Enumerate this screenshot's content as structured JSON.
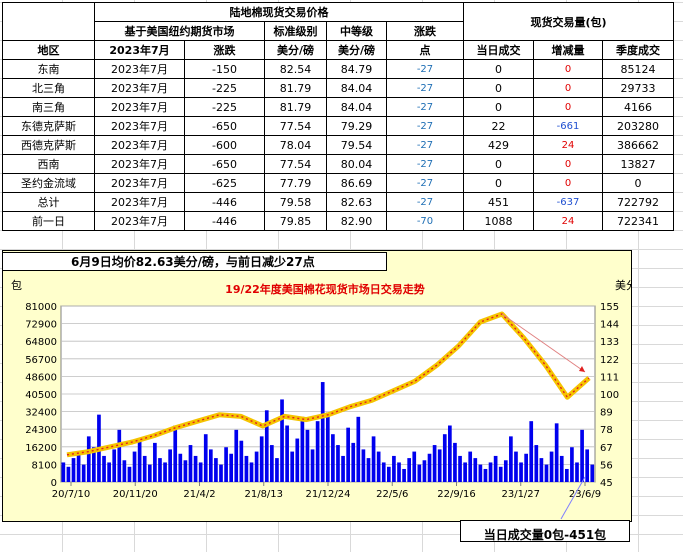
{
  "table": {
    "title": "陆地棉现货交易价格",
    "vol_title": "现货交易量(包)",
    "subheads": {
      "futures": "基于美国纽约期货市场",
      "standard": "标准级别",
      "middle": "中等级",
      "change": "涨跌"
    },
    "headers": [
      "地区",
      "2023年7月",
      "涨跌",
      "美分/磅",
      "美分/磅",
      "点",
      "当日成交",
      "增减量",
      "季度成交"
    ],
    "rows": [
      {
        "region": "东南",
        "month": "2023年7月",
        "chg": "-150",
        "std": "82.54",
        "mid": "84.79",
        "pts": "-27",
        "vol": "0",
        "delta": "0",
        "season": "85124"
      },
      {
        "region": "北三角",
        "month": "2023年7月",
        "chg": "-225",
        "std": "81.79",
        "mid": "84.04",
        "pts": "-27",
        "vol": "0",
        "delta": "0",
        "season": "29733"
      },
      {
        "region": "南三角",
        "month": "2023年7月",
        "chg": "-225",
        "std": "81.79",
        "mid": "84.04",
        "pts": "-27",
        "vol": "0",
        "delta": "0",
        "season": "4166"
      },
      {
        "region": "东德克萨斯",
        "month": "2023年7月",
        "chg": "-650",
        "std": "77.54",
        "mid": "79.29",
        "pts": "-27",
        "vol": "22",
        "delta": "-661",
        "season": "203280"
      },
      {
        "region": "西德克萨斯",
        "month": "2023年7月",
        "chg": "-600",
        "std": "78.04",
        "mid": "79.54",
        "pts": "-27",
        "vol": "429",
        "delta": "24",
        "season": "386662"
      },
      {
        "region": "西南",
        "month": "2023年7月",
        "chg": "-650",
        "std": "77.54",
        "mid": "80.04",
        "pts": "-27",
        "vol": "0",
        "delta": "0",
        "season": "13827"
      },
      {
        "region": "圣约金流域",
        "month": "2023年7月",
        "chg": "-625",
        "std": "77.79",
        "mid": "86.69",
        "pts": "-27",
        "vol": "0",
        "delta": "0",
        "season": "0"
      },
      {
        "region": "总计",
        "month": "2023年7月",
        "chg": "-446",
        "std": "79.58",
        "mid": "82.63",
        "pts": "-27",
        "vol": "451",
        "delta": "-637",
        "season": "722792"
      },
      {
        "region": "前一日",
        "month": "2023年7月",
        "chg": "-446",
        "std": "79.85",
        "mid": "82.90",
        "pts": "-70",
        "vol": "1088",
        "delta": "24",
        "season": "722341"
      }
    ]
  },
  "note": "6月9日均价82.63美分/磅，与前日减少27点",
  "bottom_note": "当日成交量0包-451包",
  "colors": {
    "chart_bg": "#ffffcc",
    "bar": "#0000ee",
    "price_line": "#f5c400",
    "price_dots": "#e02020",
    "title": "#e00000"
  },
  "chart_data": {
    "type": "bar+line",
    "title": "19/22年度美国棉花现货市场日交易走势",
    "left_axis_unit": "包",
    "right_axis_unit": "美分/磅",
    "left_ylim": [
      0,
      81000
    ],
    "right_ylim": [
      45,
      155
    ],
    "left_ticks": [
      "0",
      "8100",
      "16200",
      "24300",
      "32400",
      "40500",
      "48600",
      "56700",
      "64800",
      "72900",
      "81000"
    ],
    "right_ticks": [
      "45",
      "56",
      "67",
      "78",
      "89",
      "100",
      "111",
      "122",
      "133",
      "144",
      "155"
    ],
    "x_ticks": [
      "20/7/10",
      "20/11/20",
      "21/4/2",
      "21/8/13",
      "21/12/24",
      "22/5/6",
      "22/9/16",
      "23/1/27",
      "23/6/9"
    ],
    "grid": true,
    "price_series": {
      "name": "",
      "x_index": [
        0,
        2,
        4,
        6,
        8,
        10,
        12,
        14,
        16,
        18,
        20,
        22,
        24,
        26,
        28,
        30,
        32,
        34,
        36,
        38,
        40,
        42,
        44,
        46,
        48
      ],
      "values": [
        62,
        64,
        67,
        70,
        74,
        79,
        83,
        87,
        86,
        80,
        86,
        84,
        87,
        92,
        96,
        102,
        108,
        118,
        130,
        145,
        150,
        135,
        118,
        98,
        110
      ]
    },
    "volume_series": {
      "name": "",
      "values": [
        9000,
        7000,
        11000,
        14000,
        8000,
        21000,
        16000,
        31000,
        12000,
        9000,
        15000,
        24000,
        10000,
        7000,
        14000,
        20000,
        12000,
        8000,
        18000,
        11000,
        9000,
        15000,
        26000,
        13000,
        10000,
        17000,
        12000,
        9000,
        22000,
        15000,
        11000,
        8000,
        16000,
        13000,
        24000,
        19000,
        12000,
        9000,
        14000,
        21000,
        33000,
        17000,
        11000,
        38000,
        26000,
        14000,
        20000,
        30000,
        24000,
        15000,
        28000,
        46000,
        32000,
        22000,
        17000,
        12000,
        25000,
        18000,
        30000,
        15000,
        11000,
        21000,
        14000,
        9000,
        7000,
        12000,
        9000,
        6000,
        11000,
        14000,
        8000,
        10000,
        13000,
        17000,
        15000,
        22000,
        26000,
        18000,
        12000,
        9000,
        14000,
        11000,
        8000,
        6000,
        9000,
        12000,
        7000,
        10000,
        21000,
        14000,
        9000,
        13000,
        28000,
        17000,
        11000,
        8000,
        14000,
        27000,
        12000,
        6000,
        16000,
        9000,
        24000,
        15000,
        8000
      ]
    }
  }
}
